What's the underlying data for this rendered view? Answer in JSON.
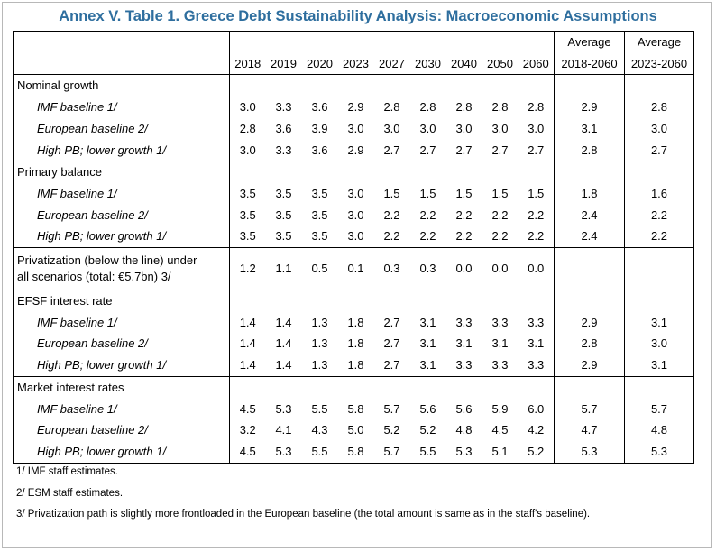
{
  "title": "Annex V. Table 1. Greece Debt Sustainability Analysis: Macroeconomic Assumptions",
  "header": {
    "years": [
      "2018",
      "2019",
      "2020",
      "2023",
      "2027",
      "2030",
      "2040",
      "2050",
      "2060"
    ],
    "avg1_line1": "Average",
    "avg1_line2": "2018-2060",
    "avg2_line1": "Average",
    "avg2_line2": "2023-2060"
  },
  "sections": [
    {
      "label": "Nominal growth",
      "rows": [
        {
          "label": "IMF baseline 1/",
          "values": [
            "3.0",
            "3.3",
            "3.6",
            "2.9",
            "2.8",
            "2.8",
            "2.8",
            "2.8",
            "2.8"
          ],
          "avg1": "2.9",
          "avg2": "2.8"
        },
        {
          "label": "European baseline 2/",
          "values": [
            "2.8",
            "3.6",
            "3.9",
            "3.0",
            "3.0",
            "3.0",
            "3.0",
            "3.0",
            "3.0"
          ],
          "avg1": "3.1",
          "avg2": "3.0"
        },
        {
          "label": "High PB; lower growth 1/",
          "values": [
            "3.0",
            "3.3",
            "3.6",
            "2.9",
            "2.7",
            "2.7",
            "2.7",
            "2.7",
            "2.7"
          ],
          "avg1": "2.8",
          "avg2": "2.7"
        }
      ]
    },
    {
      "label": "Primary balance",
      "rows": [
        {
          "label": "IMF baseline 1/",
          "values": [
            "3.5",
            "3.5",
            "3.5",
            "3.0",
            "1.5",
            "1.5",
            "1.5",
            "1.5",
            "1.5"
          ],
          "avg1": "1.8",
          "avg2": "1.6"
        },
        {
          "label": "European baseline 2/",
          "values": [
            "3.5",
            "3.5",
            "3.5",
            "3.0",
            "2.2",
            "2.2",
            "2.2",
            "2.2",
            "2.2"
          ],
          "avg1": "2.4",
          "avg2": "2.2"
        },
        {
          "label": "High PB; lower growth 1/",
          "values": [
            "3.5",
            "3.5",
            "3.5",
            "3.0",
            "2.2",
            "2.2",
            "2.2",
            "2.2",
            "2.2"
          ],
          "avg1": "2.4",
          "avg2": "2.2"
        }
      ]
    },
    {
      "label_line1": "Privatization (below the line) under",
      "label_line2": "all scenarios (total: €5.7bn) 3/",
      "values": [
        "1.2",
        "1.1",
        "0.5",
        "0.1",
        "0.3",
        "0.3",
        "0.0",
        "0.0",
        "0.0"
      ],
      "avg1": "",
      "avg2": ""
    },
    {
      "label": "EFSF interest rate",
      "rows": [
        {
          "label": "IMF baseline 1/",
          "values": [
            "1.4",
            "1.4",
            "1.3",
            "1.8",
            "2.7",
            "3.1",
            "3.3",
            "3.3",
            "3.3"
          ],
          "avg1": "2.9",
          "avg2": "3.1"
        },
        {
          "label": "European baseline 2/",
          "values": [
            "1.4",
            "1.4",
            "1.3",
            "1.8",
            "2.7",
            "3.1",
            "3.1",
            "3.1",
            "3.1"
          ],
          "avg1": "2.8",
          "avg2": "3.0"
        },
        {
          "label": "High PB; lower growth 1/",
          "values": [
            "1.4",
            "1.4",
            "1.3",
            "1.8",
            "2.7",
            "3.1",
            "3.3",
            "3.3",
            "3.3"
          ],
          "avg1": "2.9",
          "avg2": "3.1"
        }
      ]
    },
    {
      "label": "Market interest rates",
      "rows": [
        {
          "label": "IMF baseline 1/",
          "values": [
            "4.5",
            "5.3",
            "5.5",
            "5.8",
            "5.7",
            "5.6",
            "5.6",
            "5.9",
            "6.0"
          ],
          "avg1": "5.7",
          "avg2": "5.7"
        },
        {
          "label": "European baseline 2/",
          "values": [
            "3.2",
            "4.1",
            "4.3",
            "5.0",
            "5.2",
            "5.2",
            "4.8",
            "4.5",
            "4.2"
          ],
          "avg1": "4.7",
          "avg2": "4.8"
        },
        {
          "label": "High PB; lower growth 1/",
          "values": [
            "4.5",
            "5.3",
            "5.5",
            "5.8",
            "5.7",
            "5.5",
            "5.3",
            "5.1",
            "5.2"
          ],
          "avg1": "5.3",
          "avg2": "5.3"
        }
      ]
    }
  ],
  "notes": [
    "1/ IMF staff estimates.",
    "2/ ESM staff estimates.",
    "3/ Privatization path is slightly more frontloaded in the European baseline (the total amount is same as in the staff's baseline)."
  ]
}
